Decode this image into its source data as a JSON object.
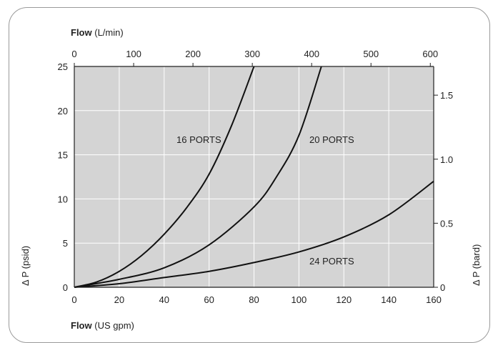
{
  "colors": {
    "plot_background": "#d4d4d4",
    "grid": "#ffffff",
    "curve": "#111111",
    "axis": "#222222"
  },
  "chart_data": {
    "type": "line",
    "title": "",
    "x_bottom": {
      "label_bold": "Flow",
      "label_rest": "(US gpm)",
      "range": [
        0,
        160
      ],
      "ticks": [
        0,
        20,
        40,
        60,
        80,
        100,
        120,
        140,
        160
      ]
    },
    "x_top": {
      "label_bold": "Flow",
      "label_rest": "(L/min)",
      "range": [
        0,
        605.7
      ],
      "ticks": [
        0,
        100,
        200,
        300,
        400,
        500,
        600
      ]
    },
    "y_left": {
      "label": "Δ P (psid)",
      "range": [
        0,
        25
      ],
      "ticks": [
        0,
        5,
        10,
        15,
        20,
        25
      ]
    },
    "y_right": {
      "label": "Δ P (bard)",
      "range": [
        0,
        1.724
      ],
      "ticks": [
        "0",
        "0.5",
        "1.0",
        "1.5"
      ],
      "tick_values": [
        0,
        0.5,
        1.0,
        1.5
      ]
    },
    "grid": true,
    "series": [
      {
        "name": "16 PORTS",
        "x": [
          0,
          10,
          20,
          30,
          40,
          50,
          60,
          70,
          80
        ],
        "y": [
          0,
          0.6,
          1.8,
          3.6,
          6.0,
          9.0,
          12.8,
          18.3,
          25
        ]
      },
      {
        "name": "20 PORTS",
        "x": [
          0,
          20,
          40,
          60,
          80,
          90,
          100,
          110
        ],
        "y": [
          0,
          0.9,
          2.2,
          4.8,
          9.1,
          12.5,
          17.2,
          25
        ]
      },
      {
        "name": "24 PORTS",
        "x": [
          0,
          20,
          40,
          60,
          80,
          100,
          120,
          140,
          160
        ],
        "y": [
          0,
          0.4,
          1.1,
          1.8,
          2.8,
          4.0,
          5.7,
          8.2,
          12.0
        ]
      }
    ]
  }
}
